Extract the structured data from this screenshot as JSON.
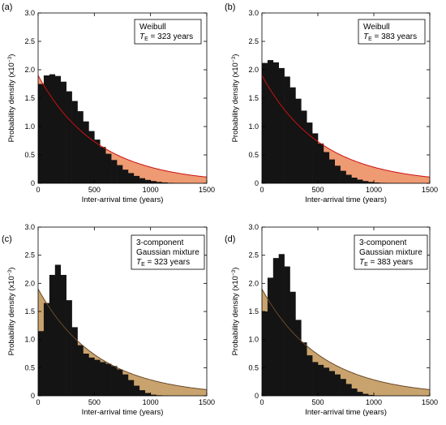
{
  "chart_data": [
    {
      "type": "area",
      "panel_label": "(a)",
      "annotation": [
        "Weibull",
        "T",
        "E",
        " = 323 years"
      ],
      "xlabel": "Inter-arrival time (years)",
      "ylabel": "Probability density (x10",
      "ylabel_exp": "−3",
      "ylabel_close": ")",
      "xlim": [
        0,
        1500
      ],
      "ylim": [
        0,
        3.0
      ],
      "xticks": [
        "0",
        "500",
        "1000",
        "1500"
      ],
      "yticks": [
        "0",
        "0.5",
        "1.0",
        "1.5",
        "2.0",
        "2.5",
        "3.0"
      ],
      "fill_color": "#ee9a72",
      "curve_color": "#cc1111",
      "exponential_rate": 1.9,
      "x": [
        0,
        50,
        100,
        150,
        200,
        250,
        300,
        350,
        400,
        450,
        500,
        550,
        600,
        650,
        700,
        750,
        800,
        850,
        900,
        950,
        1000,
        1050,
        1100,
        1150,
        1200,
        1250,
        1300,
        1350,
        1400,
        1450,
        1500
      ],
      "values": [
        1.75,
        1.9,
        1.92,
        1.89,
        1.79,
        1.62,
        1.45,
        1.27,
        1.09,
        0.92,
        0.77,
        0.64,
        0.52,
        0.41,
        0.32,
        0.24,
        0.18,
        0.13,
        0.09,
        0.06,
        0.04,
        0.025,
        0.015,
        0.008,
        0.004,
        0.002,
        0.001,
        0,
        0,
        0,
        0
      ]
    },
    {
      "type": "area",
      "panel_label": "(b)",
      "annotation": [
        "Weibull",
        "T",
        "E",
        " = 383 years"
      ],
      "xlabel": "Inter-arrival time (years)",
      "ylabel": "Probability density (x10",
      "ylabel_exp": "−3",
      "ylabel_close": ")",
      "xlim": [
        0,
        1500
      ],
      "ylim": [
        0,
        3.0
      ],
      "xticks": [
        "0",
        "500",
        "1000",
        "1500"
      ],
      "yticks": [
        "0",
        "0.5",
        "1.0",
        "1.5",
        "2.0",
        "2.5",
        "3.0"
      ],
      "fill_color": "#ee9a72",
      "curve_color": "#cc1111",
      "exponential_rate": 1.9,
      "x": [
        0,
        50,
        100,
        150,
        200,
        250,
        300,
        350,
        400,
        450,
        500,
        550,
        600,
        650,
        700,
        750,
        800,
        850,
        900,
        950,
        1000,
        1050,
        1100,
        1150,
        1200,
        1250,
        1300,
        1350,
        1400,
        1450,
        1500
      ],
      "values": [
        2.12,
        2.17,
        2.13,
        2.03,
        1.88,
        1.69,
        1.49,
        1.28,
        1.07,
        0.88,
        0.7,
        0.55,
        0.42,
        0.31,
        0.22,
        0.15,
        0.1,
        0.065,
        0.04,
        0.024,
        0.014,
        0.008,
        0.004,
        0.002,
        0.001,
        0,
        0,
        0,
        0,
        0,
        0
      ]
    },
    {
      "type": "area",
      "panel_label": "(c)",
      "annotation": [
        "3-component",
        "Gaussian mixture",
        "T",
        "E",
        " = 323 years"
      ],
      "xlabel": "Inter-arrival time (years)",
      "ylabel": "Probability density (x10",
      "ylabel_exp": "−3",
      "ylabel_close": ")",
      "xlim": [
        0,
        1500
      ],
      "ylim": [
        0,
        3.0
      ],
      "xticks": [
        "0",
        "500",
        "1000",
        "1500"
      ],
      "yticks": [
        "0",
        "0.5",
        "1.0",
        "1.5",
        "2.0",
        "2.5",
        "3.0"
      ],
      "fill_color": "#c9a36e",
      "curve_color": "#6a4a28",
      "exponential_rate": 1.9,
      "x": [
        0,
        50,
        100,
        150,
        200,
        250,
        300,
        350,
        400,
        450,
        500,
        550,
        600,
        650,
        700,
        750,
        800,
        850,
        900,
        950,
        1000,
        1050,
        1100,
        1150,
        1200,
        1250,
        1300,
        1350,
        1400,
        1450,
        1500
      ],
      "values": [
        1.15,
        1.65,
        2.15,
        2.33,
        2.15,
        1.7,
        1.22,
        0.9,
        0.75,
        0.68,
        0.64,
        0.6,
        0.57,
        0.53,
        0.47,
        0.38,
        0.28,
        0.18,
        0.1,
        0.05,
        0.02,
        0.01,
        0.004,
        0.002,
        0,
        0,
        0,
        0,
        0,
        0,
        0
      ]
    },
    {
      "type": "area",
      "panel_label": "(d)",
      "annotation": [
        "3-component",
        "Gaussian mixture",
        "T",
        "E",
        " = 383 years"
      ],
      "xlabel": "Inter-arrival time (years)",
      "ylabel": "Probability density (x10",
      "ylabel_exp": "−3",
      "ylabel_close": ")",
      "xlim": [
        0,
        1500
      ],
      "ylim": [
        0,
        3.0
      ],
      "xticks": [
        "0",
        "500",
        "1000",
        "1500"
      ],
      "yticks": [
        "0",
        "0.5",
        "1.0",
        "1.5",
        "2.0",
        "2.5",
        "3.0"
      ],
      "fill_color": "#c9a36e",
      "curve_color": "#6a4a28",
      "exponential_rate": 1.9,
      "x": [
        0,
        50,
        100,
        150,
        200,
        250,
        300,
        350,
        400,
        450,
        500,
        550,
        600,
        650,
        700,
        750,
        800,
        850,
        900,
        950,
        1000,
        1050,
        1100,
        1150,
        1200,
        1250,
        1300,
        1350,
        1400,
        1450,
        1500
      ],
      "values": [
        1.5,
        2.1,
        2.45,
        2.52,
        2.3,
        1.85,
        1.35,
        0.95,
        0.72,
        0.6,
        0.55,
        0.5,
        0.44,
        0.38,
        0.3,
        0.21,
        0.13,
        0.07,
        0.035,
        0.015,
        0.006,
        0.002,
        0,
        0,
        0,
        0,
        0,
        0,
        0,
        0,
        0
      ]
    }
  ]
}
